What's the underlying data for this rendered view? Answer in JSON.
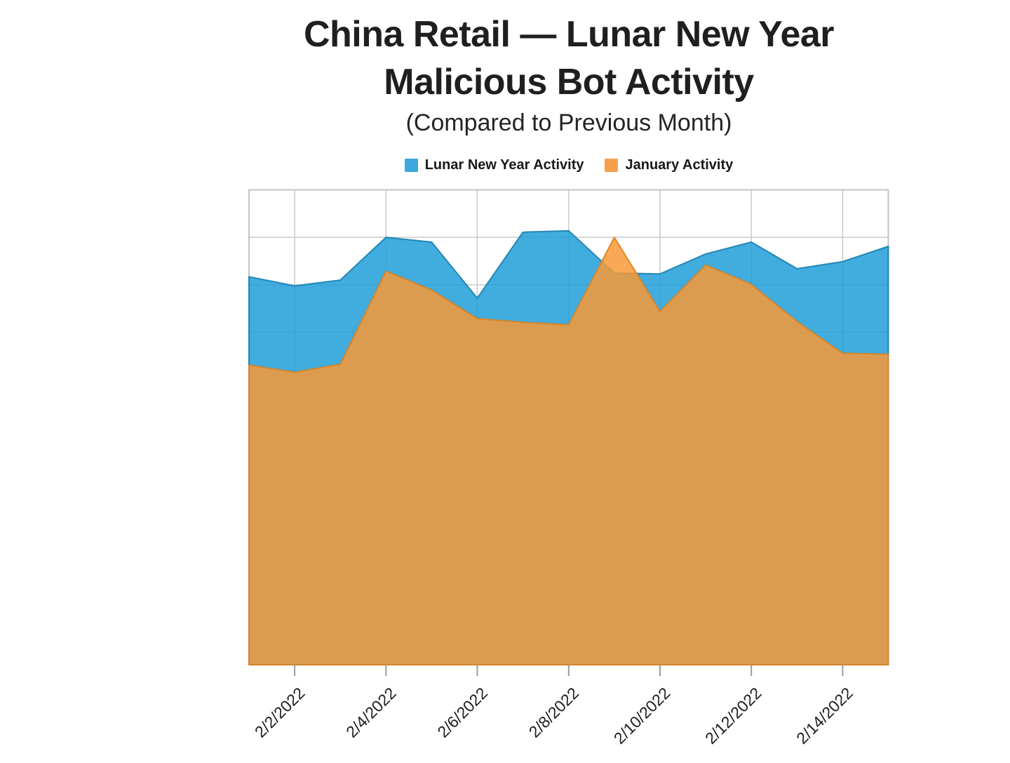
{
  "header": {
    "title_line1": "China Retail — Lunar New Year",
    "title_line2": "Malicious Bot Activity",
    "subtitle": "(Compared to Previous Month)"
  },
  "legend": {
    "items": [
      {
        "label": "Lunar New Year Activity",
        "color": "#3CA8DC"
      },
      {
        "label": "January Activity",
        "color": "#F7A04C"
      }
    ]
  },
  "chart_data": {
    "type": "area",
    "title": "China Retail — Lunar New Year Malicious Bot Activity",
    "subtitle": "(Compared to Previous Month)",
    "x": [
      "2/1/2022",
      "2/2/2022",
      "2/3/2022",
      "2/4/2022",
      "2/5/2022",
      "2/6/2022",
      "2/7/2022",
      "2/8/2022",
      "2/9/2022",
      "2/10/2022",
      "2/11/2022",
      "2/12/2022",
      "2/13/2022",
      "2/14/2022",
      "2/15/2022"
    ],
    "x_tick_labels": [
      "2/2/2022",
      "2/4/2022",
      "2/6/2022",
      "2/8/2022",
      "2/10/2022",
      "2/12/2022",
      "2/14/2022"
    ],
    "x_tick_indices": [
      1,
      3,
      5,
      7,
      9,
      11,
      13
    ],
    "series": [
      {
        "id": "lunar-new-year-activity",
        "name": "Lunar New Year Activity",
        "color": "#209DD8",
        "stroke": "#1A7FAE",
        "fill_opacity": 0.85,
        "values": [
          81.7,
          79.8,
          81.0,
          90.0,
          89.0,
          77.2,
          91.1,
          91.4,
          82.5,
          82.3,
          86.5,
          89.0,
          83.4,
          84.9,
          88.1
        ]
      },
      {
        "id": "january-activity",
        "name": "January Activity",
        "color": "#F89937",
        "stroke": "#DD821E",
        "fill_opacity": 0.85,
        "values": [
          63.1,
          61.6,
          63.3,
          82.9,
          78.9,
          72.9,
          72.1,
          71.6,
          90.0,
          74.4,
          84.2,
          80.1,
          72.3,
          65.6,
          65.4
        ]
      }
    ],
    "ylim": [
      0,
      100
    ],
    "y_gridline_step": 10,
    "y_axis_labels_visible": false,
    "grid": true,
    "legend_position": "top",
    "colors": {
      "gridline": "#c9c9c9",
      "plot_border": "#c3c3c3",
      "tick": "#9b9b9b",
      "tick_label": "#202020"
    }
  }
}
